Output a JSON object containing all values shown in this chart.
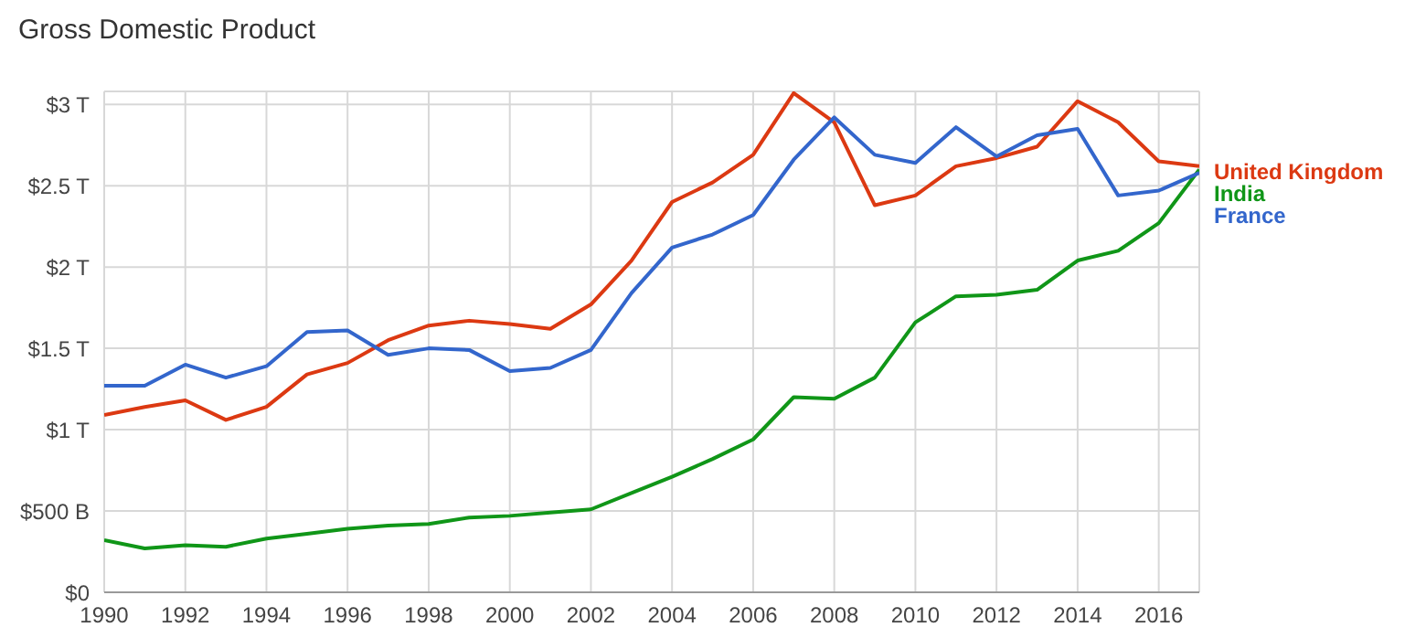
{
  "chart_data": {
    "type": "line",
    "title": "Gross Domestic Product",
    "x": [
      1990,
      1991,
      1992,
      1993,
      1994,
      1995,
      1996,
      1997,
      1998,
      1999,
      2000,
      2001,
      2002,
      2003,
      2004,
      2005,
      2006,
      2007,
      2008,
      2009,
      2010,
      2011,
      2012,
      2013,
      2014,
      2015,
      2016,
      2017
    ],
    "series": [
      {
        "name": "United Kingdom",
        "color": "#dc3912",
        "values": [
          1090000000000,
          1140000000000,
          1180000000000,
          1060000000000,
          1140000000000,
          1340000000000,
          1410000000000,
          1550000000000,
          1640000000000,
          1670000000000,
          1650000000000,
          1620000000000,
          1770000000000,
          2040000000000,
          2400000000000,
          2520000000000,
          2690000000000,
          3070000000000,
          2890000000000,
          2380000000000,
          2440000000000,
          2620000000000,
          2670000000000,
          2740000000000,
          3020000000000,
          2890000000000,
          2650000000000,
          2620000000000
        ]
      },
      {
        "name": "India",
        "color": "#109618",
        "values": [
          320000000000,
          270000000000,
          290000000000,
          280000000000,
          330000000000,
          360000000000,
          390000000000,
          410000000000,
          420000000000,
          460000000000,
          470000000000,
          490000000000,
          510000000000,
          610000000000,
          710000000000,
          820000000000,
          940000000000,
          1200000000000,
          1190000000000,
          1320000000000,
          1660000000000,
          1820000000000,
          1830000000000,
          1860000000000,
          2040000000000,
          2100000000000,
          2270000000000,
          2600000000000
        ]
      },
      {
        "name": "France",
        "color": "#3366cc",
        "values": [
          1270000000000,
          1270000000000,
          1400000000000,
          1320000000000,
          1390000000000,
          1600000000000,
          1610000000000,
          1460000000000,
          1500000000000,
          1490000000000,
          1360000000000,
          1380000000000,
          1490000000000,
          1840000000000,
          2120000000000,
          2200000000000,
          2320000000000,
          2660000000000,
          2920000000000,
          2690000000000,
          2640000000000,
          2860000000000,
          2680000000000,
          2810000000000,
          2850000000000,
          2440000000000,
          2470000000000,
          2580000000000
        ]
      }
    ],
    "xlim": [
      1990,
      2017
    ],
    "xticks": [
      1990,
      1992,
      1994,
      1996,
      1998,
      2000,
      2002,
      2004,
      2006,
      2008,
      2010,
      2012,
      2014,
      2016
    ],
    "ylim": [
      0,
      3080000000000
    ],
    "yticks": [
      {
        "value": 0,
        "label": "$0"
      },
      {
        "value": 500000000000,
        "label": "$500 B"
      },
      {
        "value": 1000000000000,
        "label": "$1 T"
      },
      {
        "value": 1500000000000,
        "label": "$1.5 T"
      },
      {
        "value": 2000000000000,
        "label": "$2 T"
      },
      {
        "value": 2500000000000,
        "label": "$2.5 T"
      },
      {
        "value": 3000000000000,
        "label": "$3 T"
      }
    ],
    "grid": true,
    "legend": "right",
    "marker": "none",
    "line_style": "solid"
  }
}
